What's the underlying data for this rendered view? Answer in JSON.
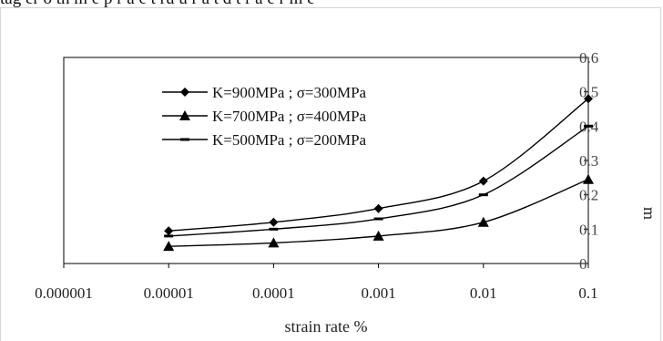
{
  "figure": {
    "cut_text": "tag er o   th m e  p r a e  t  ru u r  a   t d  t r a e r   m  e"
  },
  "chart_data": {
    "type": "line",
    "title": "",
    "xlabel": "strain rate %",
    "ylabel": "m",
    "x_scale": "log",
    "xlim": [
      1e-06,
      0.1
    ],
    "ylim": [
      0,
      0.6
    ],
    "grid": false,
    "legend_position": "top-left",
    "x_tick_labels": [
      "0.000001",
      "0.00001",
      "0.0001",
      "0.001",
      "0.01",
      "0.1"
    ],
    "y_tick_labels": [
      "0",
      "0.1",
      "0.2",
      "0.3",
      "0.4",
      "0.5",
      "0.6"
    ],
    "x": [
      1e-05,
      0.0001,
      0.001,
      0.01,
      0.1
    ],
    "series": [
      {
        "name": "K=900MPa ; σ=300MPa",
        "marker": "diamond",
        "values": [
          0.095,
          0.12,
          0.16,
          0.24,
          0.48
        ]
      },
      {
        "name": "K=700MPa ; σ=400MPa",
        "marker": "triangle",
        "values": [
          0.05,
          0.06,
          0.08,
          0.12,
          0.245
        ]
      },
      {
        "name": "K=500MPa ; σ=200MPa",
        "marker": "dash",
        "values": [
          0.08,
          0.1,
          0.13,
          0.2,
          0.4
        ]
      }
    ]
  }
}
